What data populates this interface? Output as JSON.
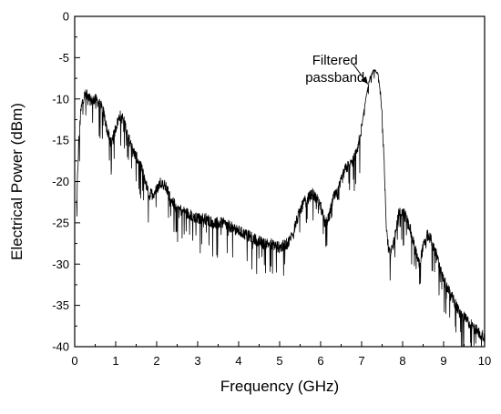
{
  "chart_data": {
    "type": "line",
    "xlabel": "Frequency (GHz)",
    "ylabel": "Electrical Power (dBm)",
    "xlim": [
      0,
      10
    ],
    "ylim": [
      -40,
      0
    ],
    "x_ticks": [
      0,
      1,
      2,
      3,
      4,
      5,
      6,
      7,
      8,
      9,
      10
    ],
    "y_ticks": [
      0,
      -5,
      -10,
      -15,
      -20,
      -25,
      -30,
      -35,
      -40
    ],
    "grid": false,
    "line_color": "#000000",
    "annotations": [
      {
        "text": "Filtered\npassband",
        "arrow_to": [
          7.15,
          -8.2
        ]
      }
    ],
    "series": [
      {
        "x": [
          0.05,
          0.1,
          0.15,
          0.2,
          0.25,
          0.3,
          0.35,
          0.4,
          0.5,
          0.6,
          0.7,
          0.8,
          0.9,
          1.0,
          1.1,
          1.2,
          1.3,
          1.4,
          1.5,
          1.6,
          1.7,
          1.8,
          1.9,
          2.0,
          2.1,
          2.2,
          2.3,
          2.4,
          2.5,
          2.6,
          2.8,
          3.0,
          3.2,
          3.4,
          3.6,
          3.8,
          4.0,
          4.2,
          4.4,
          4.6,
          4.8,
          5.0,
          5.2,
          5.3,
          5.4,
          5.5,
          5.6,
          5.7,
          5.8,
          5.9,
          6.0,
          6.1,
          6.2,
          6.3,
          6.4,
          6.5,
          6.6,
          6.7,
          6.8,
          6.9,
          7.0,
          7.1,
          7.2,
          7.3,
          7.4,
          7.45,
          7.5,
          7.55,
          7.6,
          7.65,
          7.7,
          7.8,
          7.9,
          8.0,
          8.1,
          8.2,
          8.3,
          8.4,
          8.5,
          8.6,
          8.7,
          8.8,
          8.9,
          9.0,
          9.1,
          9.2,
          9.3,
          9.4,
          9.5,
          9.6,
          9.7,
          9.8,
          9.9,
          10.0
        ],
        "values": [
          -22.5,
          -15,
          -11.5,
          -10,
          -9.5,
          -9.6,
          -10,
          -10.2,
          -10,
          -10.5,
          -11.5,
          -14,
          -15.5,
          -13.5,
          -12,
          -12.5,
          -14.5,
          -16,
          -17,
          -18,
          -19.5,
          -21.5,
          -21.5,
          -21,
          -20,
          -20.5,
          -21.5,
          -22.5,
          -23,
          -23.5,
          -24,
          -24.5,
          -24.5,
          -25,
          -25,
          -25.5,
          -26,
          -26.5,
          -27,
          -27.5,
          -27.5,
          -28,
          -27.5,
          -26.5,
          -25,
          -23.5,
          -22.5,
          -22,
          -21.5,
          -22,
          -23,
          -25,
          -24.5,
          -22,
          -21.5,
          -20,
          -18.5,
          -18,
          -17.5,
          -16,
          -13.5,
          -10,
          -7.5,
          -6.5,
          -7,
          -9,
          -12,
          -18,
          -25,
          -28,
          -29,
          -27,
          -24,
          -23.5,
          -24.5,
          -26,
          -28,
          -30,
          -28,
          -26.5,
          -27,
          -28.5,
          -30,
          -32,
          -33,
          -34,
          -35,
          -36,
          -36.5,
          -37,
          -37.5,
          -38,
          -38.5,
          -38.8
        ]
      }
    ]
  }
}
